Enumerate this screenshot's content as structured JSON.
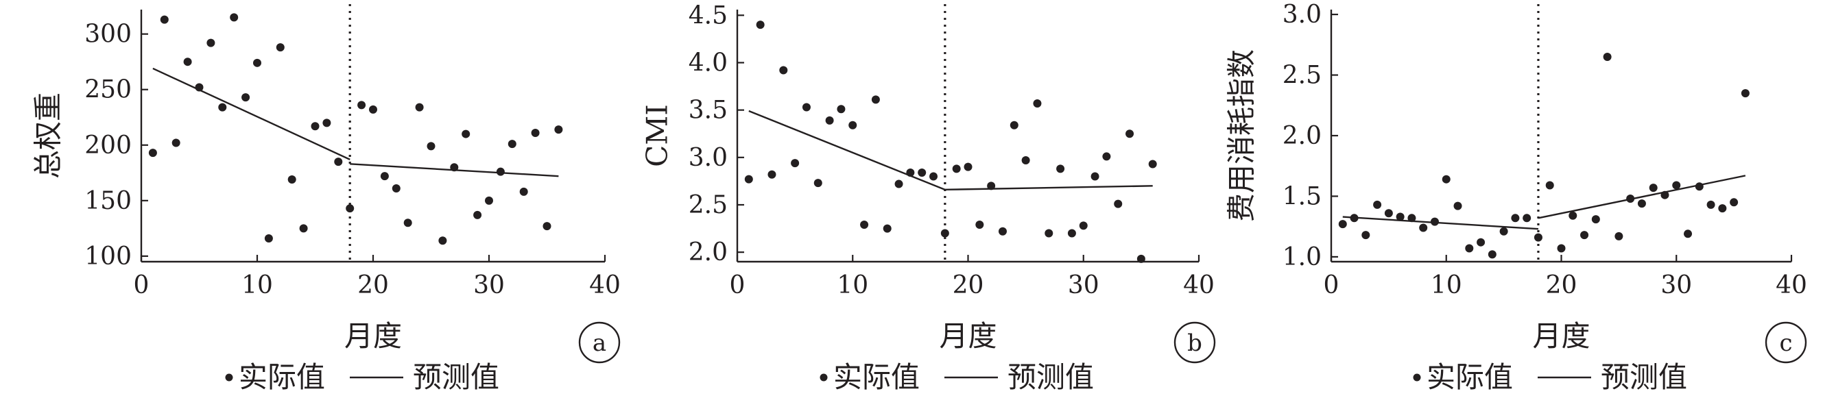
{
  "chart_data": [
    {
      "type": "scatter",
      "panel_label": "a",
      "xlabel": "月度",
      "ylabel": "总权重",
      "xlim": [
        0,
        40
      ],
      "ylim": [
        95,
        322
      ],
      "xticks": [
        0,
        10,
        20,
        30,
        40
      ],
      "yticks": [
        100,
        150,
        200,
        250,
        300
      ],
      "divider_x": 18,
      "legend": {
        "actual": "实际值",
        "predicted": "预测值"
      },
      "series": [
        {
          "kind": "actual",
          "points": [
            [
              1,
              193
            ],
            [
              2,
              313
            ],
            [
              3,
              202
            ],
            [
              4,
              275
            ],
            [
              5,
              252
            ],
            [
              6,
              292
            ],
            [
              7,
              234
            ],
            [
              8,
              315
            ],
            [
              9,
              243
            ],
            [
              10,
              274
            ],
            [
              11,
              116
            ],
            [
              12,
              288
            ],
            [
              13,
              169
            ],
            [
              14,
              125
            ],
            [
              15,
              217
            ],
            [
              16,
              220
            ],
            [
              17,
              185
            ],
            [
              18,
              143
            ],
            [
              19,
              236
            ],
            [
              20,
              232
            ],
            [
              21,
              172
            ],
            [
              22,
              161
            ],
            [
              23,
              130
            ],
            [
              24,
              234
            ],
            [
              25,
              199
            ],
            [
              26,
              114
            ],
            [
              27,
              180
            ],
            [
              28,
              210
            ],
            [
              29,
              137
            ],
            [
              30,
              150
            ],
            [
              31,
              176
            ],
            [
              32,
              201
            ],
            [
              33,
              158
            ],
            [
              34,
              211
            ],
            [
              35,
              127
            ],
            [
              36,
              214
            ]
          ]
        },
        {
          "kind": "predicted",
          "segments": [
            [
              [
                1,
                269
              ],
              [
                18,
                187
              ]
            ],
            [
              [
                18,
                183
              ],
              [
                36,
                172
              ]
            ]
          ]
        }
      ]
    },
    {
      "type": "scatter",
      "panel_label": "b",
      "xlabel": "月度",
      "ylabel": "CMI",
      "xlim": [
        0,
        40
      ],
      "ylim": [
        1.9,
        4.56
      ],
      "xticks": [
        0,
        10,
        20,
        30,
        40
      ],
      "yticks": [
        2.0,
        2.5,
        3.0,
        3.5,
        4.0,
        4.5
      ],
      "ytick_labels": [
        "2.0",
        "2.5",
        "3.0",
        "3.5",
        "4.0",
        "4.5"
      ],
      "divider_x": 18,
      "legend": {
        "actual": "实际值",
        "predicted": "预测值"
      },
      "series": [
        {
          "kind": "actual",
          "points": [
            [
              1,
              2.77
            ],
            [
              2,
              4.4
            ],
            [
              3,
              2.82
            ],
            [
              4,
              3.92
            ],
            [
              5,
              2.94
            ],
            [
              6,
              3.53
            ],
            [
              7,
              2.73
            ],
            [
              8,
              3.39
            ],
            [
              9,
              3.51
            ],
            [
              10,
              3.34
            ],
            [
              11,
              2.29
            ],
            [
              12,
              3.61
            ],
            [
              13,
              2.25
            ],
            [
              14,
              2.72
            ],
            [
              15,
              2.84
            ],
            [
              16,
              2.84
            ],
            [
              17,
              2.8
            ],
            [
              18,
              2.2
            ],
            [
              19,
              2.88
            ],
            [
              20,
              2.9
            ],
            [
              21,
              2.29
            ],
            [
              22,
              2.7
            ],
            [
              23,
              2.22
            ],
            [
              24,
              3.34
            ],
            [
              25,
              2.97
            ],
            [
              26,
              3.57
            ],
            [
              27,
              2.2
            ],
            [
              28,
              2.88
            ],
            [
              29,
              2.2
            ],
            [
              30,
              2.28
            ],
            [
              31,
              2.8
            ],
            [
              32,
              3.01
            ],
            [
              33,
              2.51
            ],
            [
              34,
              3.25
            ],
            [
              35,
              1.93
            ],
            [
              36,
              2.93
            ]
          ]
        },
        {
          "kind": "predicted",
          "segments": [
            [
              [
                1,
                3.49
              ],
              [
                18,
                2.66
              ]
            ],
            [
              [
                18,
                2.66
              ],
              [
                36,
                2.7
              ]
            ]
          ]
        }
      ]
    },
    {
      "type": "scatter",
      "panel_label": "c",
      "xlabel": "月度",
      "ylabel": "费用消耗指数",
      "xlim": [
        0,
        40
      ],
      "ylim": [
        0.96,
        3.04
      ],
      "xticks": [
        0,
        10,
        20,
        30,
        40
      ],
      "yticks": [
        1.0,
        1.5,
        2.0,
        2.5,
        3.0
      ],
      "ytick_labels": [
        "1.0",
        "1.5",
        "2.0",
        "2.5",
        "3.0"
      ],
      "divider_x": 18,
      "legend": {
        "actual": "实际值",
        "predicted": "预测值"
      },
      "series": [
        {
          "kind": "actual",
          "points": [
            [
              1,
              1.27
            ],
            [
              2,
              1.32
            ],
            [
              3,
              1.18
            ],
            [
              4,
              1.43
            ],
            [
              5,
              1.36
            ],
            [
              6,
              1.33
            ],
            [
              7,
              1.32
            ],
            [
              8,
              1.24
            ],
            [
              9,
              1.29
            ],
            [
              10,
              1.64
            ],
            [
              11,
              1.42
            ],
            [
              12,
              1.07
            ],
            [
              13,
              1.12
            ],
            [
              14,
              1.02
            ],
            [
              15,
              1.21
            ],
            [
              16,
              1.32
            ],
            [
              17,
              1.32
            ],
            [
              18,
              1.16
            ],
            [
              19,
              1.59
            ],
            [
              20,
              1.07
            ],
            [
              21,
              1.34
            ],
            [
              22,
              1.18
            ],
            [
              23,
              1.31
            ],
            [
              24,
              2.65
            ],
            [
              25,
              1.17
            ],
            [
              26,
              1.48
            ],
            [
              27,
              1.44
            ],
            [
              28,
              1.57
            ],
            [
              29,
              1.51
            ],
            [
              30,
              1.59
            ],
            [
              31,
              1.19
            ],
            [
              32,
              1.58
            ],
            [
              33,
              1.43
            ],
            [
              34,
              1.4
            ],
            [
              35,
              1.45
            ],
            [
              36,
              2.35
            ]
          ]
        },
        {
          "kind": "predicted",
          "segments": [
            [
              [
                1,
                1.33
              ],
              [
                18,
                1.23
              ]
            ],
            [
              [
                18,
                1.32
              ],
              [
                36,
                1.67
              ]
            ]
          ]
        }
      ]
    }
  ]
}
